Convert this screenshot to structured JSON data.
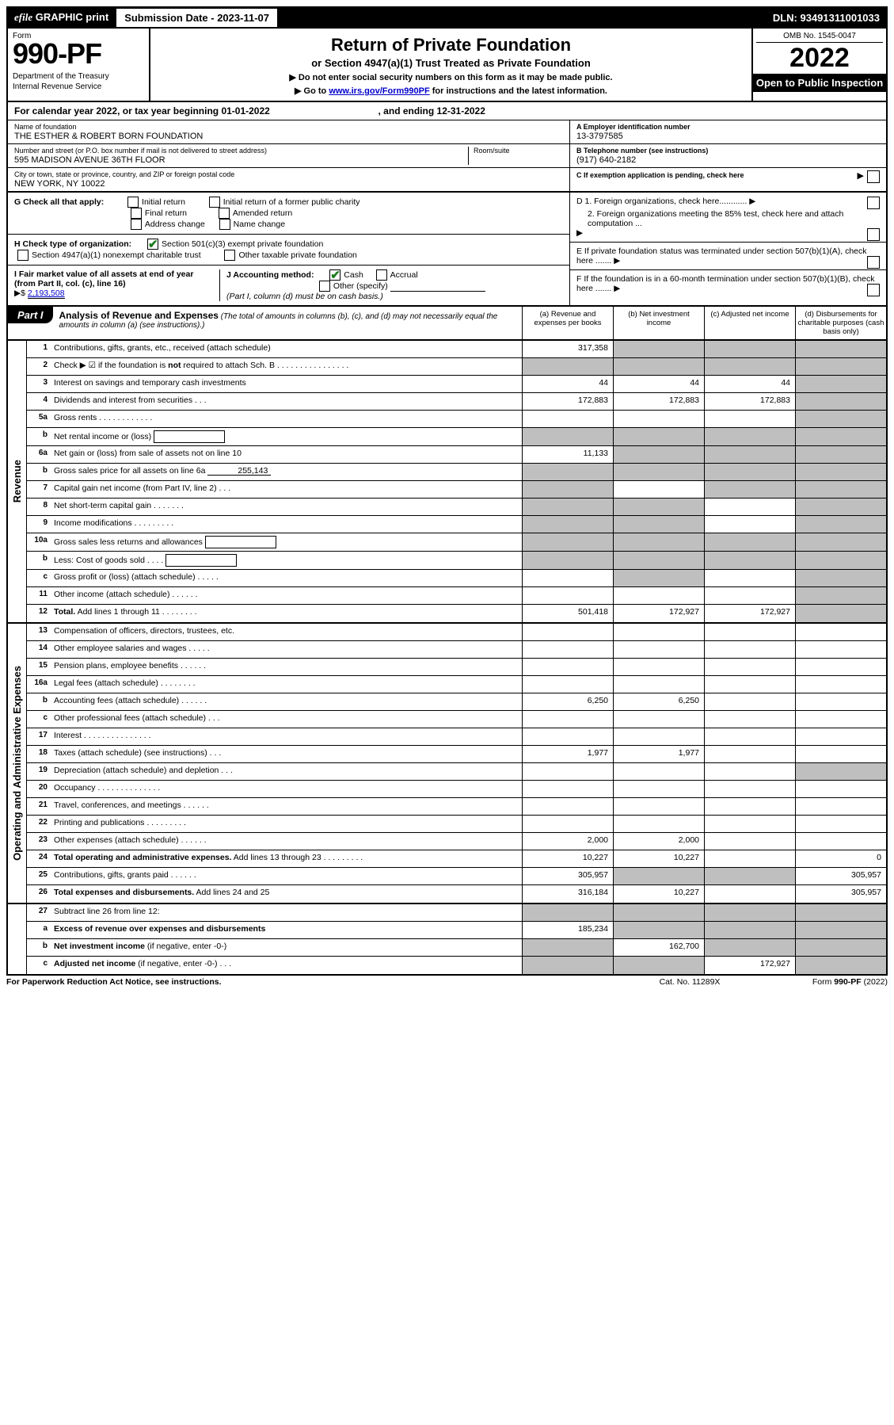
{
  "topbar": {
    "efile_prefix": "efile",
    "efile_graphic": "GRAPHIC",
    "efile_print": "print",
    "submission_label": "Submission Date - 2023-11-07",
    "dln": "DLN: 93491311001033"
  },
  "header": {
    "form_label": "Form",
    "form_number": "990-PF",
    "dept": "Department of the Treasury",
    "irs": "Internal Revenue Service",
    "title": "Return of Private Foundation",
    "subtitle": "or Section 4947(a)(1) Trust Treated as Private Foundation",
    "bullet1": "▶ Do not enter social security numbers on this form as it may be made public.",
    "bullet2_pre": "▶ Go to ",
    "bullet2_link": "www.irs.gov/Form990PF",
    "bullet2_post": " for instructions and the latest information.",
    "omb": "OMB No. 1545-0047",
    "year": "2022",
    "open": "Open to Public Inspection"
  },
  "calendar": {
    "text": "For calendar year 2022, or tax year beginning 01-01-2022",
    "mid": ", and ending 12-31-2022"
  },
  "identity": {
    "name_label": "Name of foundation",
    "name": "THE ESTHER & ROBERT BORN FOUNDATION",
    "addr_label": "Number and street (or P.O. box number if mail is not delivered to street address)",
    "addr": "595 MADISON AVENUE 36TH FLOOR",
    "room_label": "Room/suite",
    "city_label": "City or town, state or province, country, and ZIP or foreign postal code",
    "city": "NEW YORK, NY  10022",
    "a_label": "A Employer identification number",
    "ein": "13-3797585",
    "b_label": "B Telephone number (see instructions)",
    "phone": "(917) 640-2182",
    "c_label": "C If exemption application is pending, check here"
  },
  "boxG": {
    "label": "G Check all that apply:",
    "opts": [
      "Initial return",
      "Initial return of a former public charity",
      "Final return",
      "Amended return",
      "Address change",
      "Name change"
    ]
  },
  "boxH": {
    "label": "H Check type of organization:",
    "opt1": "Section 501(c)(3) exempt private foundation",
    "opt2": "Section 4947(a)(1) nonexempt charitable trust",
    "opt3": "Other taxable private foundation"
  },
  "boxI": {
    "label": "I Fair market value of all assets at end of year (from Part II, col. (c), line 16)",
    "arrow": "▶$",
    "value": "2,193,508"
  },
  "boxJ": {
    "label": "J Accounting method:",
    "cash": "Cash",
    "accrual": "Accrual",
    "other": "Other (specify)",
    "note": "(Part I, column (d) must be on cash basis.)"
  },
  "rightD": {
    "d1": "D 1. Foreign organizations, check here............",
    "d2": "2. Foreign organizations meeting the 85% test, check here and attach computation ...",
    "e": "E  If private foundation status was terminated under section 507(b)(1)(A), check here .......",
    "f": "F  If the foundation is in a 60-month termination under section 507(b)(1)(B), check here ......."
  },
  "part1": {
    "hdr": "Part I",
    "title": "Analysis of Revenue and Expenses",
    "title_note": " (The total of amounts in columns (b), (c), and (d) may not necessarily equal the amounts in column (a) (see instructions).)",
    "cols": [
      "(a)  Revenue and expenses per books",
      "(b)  Net investment income",
      "(c)  Adjusted net income",
      "(d)  Disbursements for charitable purposes (cash basis only)"
    ]
  },
  "sections": {
    "revenue": "Revenue",
    "expenses": "Operating and Administrative Expenses"
  },
  "rows": [
    {
      "n": "1",
      "d": "Contributions, gifts, grants, etc., received (attach schedule)",
      "a": "317,358",
      "b": "",
      "c": "",
      "dcol": "",
      "greyB": true,
      "greyC": true,
      "greyD": true
    },
    {
      "n": "2",
      "d": "Check ▶ ☑ if the foundation is <b>not</b> required to attach Sch. B  .  .  .  .  .  .  .  .  .  .  .  .  .  .  .  .",
      "a": "",
      "b": "",
      "c": "",
      "dcol": "",
      "greyA": true,
      "greyB": true,
      "greyC": true,
      "greyD": true
    },
    {
      "n": "3",
      "d": "Interest on savings and temporary cash investments",
      "a": "44",
      "b": "44",
      "c": "44",
      "dcol": "",
      "greyD": true
    },
    {
      "n": "4",
      "d": "Dividends and interest from securities  .  .  .",
      "a": "172,883",
      "b": "172,883",
      "c": "172,883",
      "dcol": "",
      "greyD": true
    },
    {
      "n": "5a",
      "d": "Gross rents  .  .  .  .  .  .  .  .  .  .  .  .",
      "a": "",
      "b": "",
      "c": "",
      "dcol": "",
      "greyD": true
    },
    {
      "n": "b",
      "d": "Net rental income or (loss) <span class='inline-box'></span>",
      "a": "",
      "b": "",
      "c": "",
      "dcol": "",
      "greyA": true,
      "greyB": true,
      "greyC": true,
      "greyD": true
    },
    {
      "n": "6a",
      "d": "Net gain or (loss) from sale of assets not on line 10",
      "a": "11,133",
      "b": "",
      "c": "",
      "dcol": "",
      "greyB": true,
      "greyC": true,
      "greyD": true
    },
    {
      "n": "b",
      "d": "Gross sales price for all assets on line 6a <span class='inline-underline'>255,143</span>",
      "a": "",
      "b": "",
      "c": "",
      "dcol": "",
      "greyA": true,
      "greyB": true,
      "greyC": true,
      "greyD": true
    },
    {
      "n": "7",
      "d": "Capital gain net income (from Part IV, line 2)  .  .  .",
      "a": "",
      "b": "",
      "c": "",
      "dcol": "",
      "greyA": true,
      "greyC": true,
      "greyD": true
    },
    {
      "n": "8",
      "d": "Net short-term capital gain  .  .  .  .  .  .  .",
      "a": "",
      "b": "",
      "c": "",
      "dcol": "",
      "greyA": true,
      "greyB": true,
      "greyD": true
    },
    {
      "n": "9",
      "d": "Income modifications  .  .  .  .  .  .  .  .  .",
      "a": "",
      "b": "",
      "c": "",
      "dcol": "",
      "greyA": true,
      "greyB": true,
      "greyD": true
    },
    {
      "n": "10a",
      "d": "Gross sales less returns and allowances <span class='inline-box'></span>",
      "a": "",
      "b": "",
      "c": "",
      "dcol": "",
      "greyA": true,
      "greyB": true,
      "greyC": true,
      "greyD": true
    },
    {
      "n": "b",
      "d": "Less: Cost of goods sold  .  .  .  . <span class='inline-box'></span>",
      "a": "",
      "b": "",
      "c": "",
      "dcol": "",
      "greyA": true,
      "greyB": true,
      "greyC": true,
      "greyD": true
    },
    {
      "n": "c",
      "d": "Gross profit or (loss) (attach schedule)  .  .  .  .  .",
      "a": "",
      "b": "",
      "c": "",
      "dcol": "",
      "greyB": true,
      "greyD": true
    },
    {
      "n": "11",
      "d": "Other income (attach schedule)  .  .  .  .  .  .",
      "a": "",
      "b": "",
      "c": "",
      "dcol": "",
      "greyD": true
    },
    {
      "n": "12",
      "d": "<b>Total.</b> Add lines 1 through 11  .  .  .  .  .  .  .  .",
      "a": "501,418",
      "b": "172,927",
      "c": "172,927",
      "dcol": "",
      "greyD": true,
      "bold": true
    }
  ],
  "exp_rows": [
    {
      "n": "13",
      "d": "Compensation of officers, directors, trustees, etc.",
      "a": "",
      "b": "",
      "c": "",
      "dcol": ""
    },
    {
      "n": "14",
      "d": "Other employee salaries and wages  .  .  .  .  .",
      "a": "",
      "b": "",
      "c": "",
      "dcol": ""
    },
    {
      "n": "15",
      "d": "Pension plans, employee benefits  .  .  .  .  .  .",
      "a": "",
      "b": "",
      "c": "",
      "dcol": ""
    },
    {
      "n": "16a",
      "d": "Legal fees (attach schedule)  .  .  .  .  .  .  .  .",
      "a": "",
      "b": "",
      "c": "",
      "dcol": ""
    },
    {
      "n": "b",
      "d": "Accounting fees (attach schedule)  .  .  .  .  .  .",
      "a": "6,250",
      "b": "6,250",
      "c": "",
      "dcol": ""
    },
    {
      "n": "c",
      "d": "Other professional fees (attach schedule)  .  .  .",
      "a": "",
      "b": "",
      "c": "",
      "dcol": ""
    },
    {
      "n": "17",
      "d": "Interest  .  .  .  .  .  .  .  .  .  .  .  .  .  .  .",
      "a": "",
      "b": "",
      "c": "",
      "dcol": ""
    },
    {
      "n": "18",
      "d": "Taxes (attach schedule) (see instructions)  .  .  .",
      "a": "1,977",
      "b": "1,977",
      "c": "",
      "dcol": ""
    },
    {
      "n": "19",
      "d": "Depreciation (attach schedule) and depletion  .  .  .",
      "a": "",
      "b": "",
      "c": "",
      "dcol": "",
      "greyD": true
    },
    {
      "n": "20",
      "d": "Occupancy  .  .  .  .  .  .  .  .  .  .  .  .  .  .",
      "a": "",
      "b": "",
      "c": "",
      "dcol": ""
    },
    {
      "n": "21",
      "d": "Travel, conferences, and meetings  .  .  .  .  .  .",
      "a": "",
      "b": "",
      "c": "",
      "dcol": ""
    },
    {
      "n": "22",
      "d": "Printing and publications  .  .  .  .  .  .  .  .  .",
      "a": "",
      "b": "",
      "c": "",
      "dcol": ""
    },
    {
      "n": "23",
      "d": "Other expenses (attach schedule)  .  .  .  .  .  .",
      "a": "2,000",
      "b": "2,000",
      "c": "",
      "dcol": ""
    },
    {
      "n": "24",
      "d": "<b>Total operating and administrative expenses.</b> Add lines 13 through 23  .  .  .  .  .  .  .  .  .",
      "a": "10,227",
      "b": "10,227",
      "c": "",
      "dcol": "0",
      "bold": true
    },
    {
      "n": "25",
      "d": "Contributions, gifts, grants paid  .  .  .  .  .  .",
      "a": "305,957",
      "b": "",
      "c": "",
      "dcol": "305,957",
      "greyB": true,
      "greyC": true
    },
    {
      "n": "26",
      "d": "<b>Total expenses and disbursements.</b> Add lines 24 and 25",
      "a": "316,184",
      "b": "10,227",
      "c": "",
      "dcol": "305,957",
      "bold": true
    }
  ],
  "bottom_rows": [
    {
      "n": "27",
      "d": "Subtract line 26 from line 12:",
      "a": "",
      "b": "",
      "c": "",
      "dcol": "",
      "greyA": true,
      "greyB": true,
      "greyC": true,
      "greyD": true
    },
    {
      "n": "a",
      "d": "<b>Excess of revenue over expenses and disbursements</b>",
      "a": "185,234",
      "b": "",
      "c": "",
      "dcol": "",
      "greyB": true,
      "greyC": true,
      "greyD": true
    },
    {
      "n": "b",
      "d": "<b>Net investment income</b> (if negative, enter -0-)",
      "a": "",
      "b": "162,700",
      "c": "",
      "dcol": "",
      "greyA": true,
      "greyC": true,
      "greyD": true
    },
    {
      "n": "c",
      "d": "<b>Adjusted net income</b> (if negative, enter -0-)  .  .  .",
      "a": "",
      "b": "",
      "c": "172,927",
      "dcol": "",
      "greyA": true,
      "greyB": true,
      "greyD": true
    }
  ],
  "footer": {
    "left": "For Paperwork Reduction Act Notice, see instructions.",
    "mid": "Cat. No. 11289X",
    "right": "Form 990-PF (2022)"
  },
  "colors": {
    "grey": "#bfbfbf",
    "black": "#000000",
    "link": "#0000cc",
    "check": "#1a7a1a"
  }
}
